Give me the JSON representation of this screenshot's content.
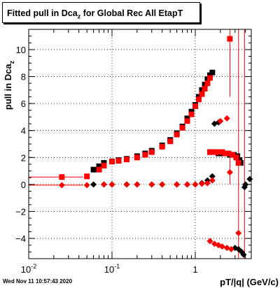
{
  "chart_data": {
    "type": "scatter",
    "title_prefix": "Fitted pull in Dca",
    "title_sub": "z",
    "title_suffix": " for Global Rec All EtapT",
    "xlabel": "pT/|q| (GeV/c)",
    "ylabel_main": "pull in Dca",
    "ylabel_sub": "z",
    "xscale": "log",
    "xlim": [
      0.01,
      4.7
    ],
    "ylim": [
      -5.5,
      11.5
    ],
    "grid": true,
    "xticks": [
      {
        "v": 0.01,
        "base": "10",
        "exp": "-2"
      },
      {
        "v": 0.1,
        "base": "10",
        "exp": "-1"
      },
      {
        "v": 1,
        "base": "1",
        "exp": ""
      }
    ],
    "yticks": [
      -4,
      -2,
      0,
      2,
      4,
      6,
      8,
      10
    ],
    "timestamp": "Wed Nov 11 10:57:43 2020",
    "series": [
      {
        "color": "#000000",
        "marker": "square",
        "points": [
          [
            0.06,
            1.1
          ],
          [
            0.07,
            1.35
          ],
          [
            0.08,
            1.6
          ],
          [
            0.1,
            1.7
          ],
          [
            0.12,
            1.8
          ],
          [
            0.15,
            1.9
          ],
          [
            0.2,
            2.1
          ],
          [
            0.25,
            2.3
          ],
          [
            0.3,
            2.5
          ],
          [
            0.4,
            2.9
          ],
          [
            0.5,
            3.3
          ],
          [
            0.6,
            3.8
          ],
          [
            0.7,
            4.3
          ],
          [
            0.8,
            4.9
          ],
          [
            0.9,
            5.4
          ],
          [
            1.0,
            5.9
          ],
          [
            1.1,
            6.5
          ],
          [
            1.2,
            7.0
          ],
          [
            1.3,
            7.4
          ],
          [
            1.4,
            7.8
          ],
          [
            1.5,
            8.1
          ],
          [
            1.6,
            8.3
          ],
          [
            1.5,
            2.4
          ],
          [
            1.7,
            2.4
          ],
          [
            1.9,
            2.3
          ],
          [
            2.1,
            2.3
          ],
          [
            2.3,
            2.3
          ],
          [
            2.6,
            2.2
          ],
          [
            2.9,
            2.2
          ],
          [
            3.2,
            2.1
          ],
          [
            3.4,
            1.8
          ],
          [
            3.5,
            1.6
          ]
        ]
      },
      {
        "color": "#000000",
        "marker": "diamond",
        "points": [
          [
            0.06,
            0.0
          ],
          [
            0.08,
            0.0
          ],
          [
            0.1,
            0.0
          ],
          [
            0.15,
            0.0
          ],
          [
            0.2,
            0.0
          ],
          [
            0.3,
            0.0
          ],
          [
            0.4,
            0.0
          ],
          [
            0.6,
            0.0
          ],
          [
            0.8,
            0.0
          ],
          [
            1.0,
            0.0
          ],
          [
            1.2,
            0.1
          ],
          [
            1.4,
            0.3
          ],
          [
            1.6,
            0.6
          ],
          [
            1.7,
            4.5
          ],
          [
            1.9,
            4.6
          ],
          [
            3.0,
            -4.7
          ],
          [
            3.3,
            -4.8
          ],
          [
            3.6,
            -5.0
          ],
          [
            3.8,
            -5.2
          ],
          [
            4.5,
            0.4
          ],
          [
            4.0,
            0.0
          ],
          [
            3.9,
            -0.2
          ]
        ]
      },
      {
        "color": "#ff0000",
        "marker": "square",
        "points": [
          [
            0.025,
            0.55
          ],
          [
            0.05,
            0.6
          ],
          [
            0.07,
            1.1
          ],
          [
            0.08,
            1.4
          ],
          [
            0.1,
            1.7
          ],
          [
            0.12,
            1.75
          ],
          [
            0.15,
            1.85
          ],
          [
            0.2,
            2.0
          ],
          [
            0.25,
            2.2
          ],
          [
            0.3,
            2.4
          ],
          [
            0.4,
            2.8
          ],
          [
            0.5,
            3.2
          ],
          [
            0.6,
            3.7
          ],
          [
            0.7,
            4.2
          ],
          [
            0.8,
            4.7
          ],
          [
            0.9,
            5.2
          ],
          [
            1.0,
            5.8
          ],
          [
            1.1,
            6.3
          ],
          [
            1.2,
            6.7
          ],
          [
            1.3,
            7.1
          ],
          [
            1.4,
            7.5
          ],
          [
            1.5,
            7.9
          ],
          [
            1.5,
            2.4
          ],
          [
            1.7,
            2.4
          ],
          [
            1.9,
            2.4
          ],
          [
            2.1,
            2.4
          ],
          [
            2.3,
            2.3
          ],
          [
            2.5,
            2.3
          ],
          [
            2.6,
            10.8
          ],
          [
            2.8,
            2.2
          ],
          [
            3.1,
            2.0
          ],
          [
            3.3,
            1.6
          ]
        ]
      },
      {
        "color": "#ff0000",
        "marker": "diamond",
        "points": [
          [
            0.025,
            -0.05
          ],
          [
            0.05,
            -0.05
          ],
          [
            0.08,
            0.0
          ],
          [
            0.1,
            0.0
          ],
          [
            0.15,
            0.0
          ],
          [
            0.2,
            0.0
          ],
          [
            0.3,
            0.0
          ],
          [
            0.4,
            0.0
          ],
          [
            0.6,
            0.0
          ],
          [
            0.8,
            0.0
          ],
          [
            1.0,
            0.0
          ],
          [
            1.2,
            0.05
          ],
          [
            1.4,
            0.1
          ],
          [
            1.5,
            -4.2
          ],
          [
            1.7,
            -4.4
          ],
          [
            1.9,
            -4.5
          ],
          [
            2.1,
            -4.6
          ],
          [
            2.4,
            -4.7
          ],
          [
            2.7,
            -4.8
          ],
          [
            2.0,
            4.7
          ],
          [
            2.4,
            4.9
          ],
          [
            2.6,
            0.9
          ],
          [
            3.3,
            -3.6
          ],
          [
            1.6,
            0.3
          ]
        ]
      }
    ],
    "error_bars": [
      {
        "color": "#ff0000",
        "x": 0.025,
        "y": 0.55,
        "xlo": 0.01,
        "xhi": 0.045
      },
      {
        "color": "#ff0000",
        "x": 0.025,
        "y": -0.05,
        "xlo": 0.01,
        "xhi": 0.045
      },
      {
        "color": "#ff0000",
        "x": 2.6,
        "y": 10.8,
        "ylo": 6.5,
        "yhi": 11.5
      },
      {
        "color": "#ff0000",
        "x": 2.6,
        "y": 0.9,
        "ylo": 0.0,
        "yhi": 2.0
      },
      {
        "color": "#ff0000",
        "x": 3.3,
        "y": -3.6,
        "ylo": -5.5,
        "yhi": 11.5
      },
      {
        "color": "#ff0000",
        "x": 3.9,
        "y": 0.0,
        "ylo": -5.5,
        "yhi": 11.5
      }
    ]
  }
}
